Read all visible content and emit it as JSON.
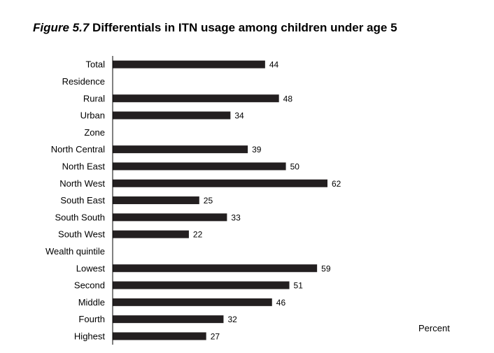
{
  "figure": {
    "number": "Figure 5.7",
    "title": "Differentials in ITN usage among children under age 5"
  },
  "chart_data": {
    "type": "bar",
    "orientation": "horizontal",
    "title": "Figure 5.7 Differentials in ITN usage among children under age 5",
    "xlabel": "Percent",
    "ylabel": "",
    "xlim": [
      0,
      100
    ],
    "grid": false,
    "bar_color": "#231f20",
    "categories": [
      {
        "label": "Total",
        "value": 44
      },
      {
        "label": "Residence",
        "value": null,
        "heading": true
      },
      {
        "label": "Rural",
        "value": 48
      },
      {
        "label": "Urban",
        "value": 34
      },
      {
        "label": "Zone",
        "value": null,
        "heading": true
      },
      {
        "label": "North Central",
        "value": 39
      },
      {
        "label": "North East",
        "value": 50
      },
      {
        "label": "North West",
        "value": 62
      },
      {
        "label": "South East",
        "value": 25
      },
      {
        "label": "South South",
        "value": 33
      },
      {
        "label": "South West",
        "value": 22
      },
      {
        "label": "Wealth quintile",
        "value": null,
        "heading": true
      },
      {
        "label": "Lowest",
        "value": 59
      },
      {
        "label": "Second",
        "value": 51
      },
      {
        "label": "Middle",
        "value": 46
      },
      {
        "label": "Fourth",
        "value": 32
      },
      {
        "label": "Highest",
        "value": 27
      }
    ]
  }
}
